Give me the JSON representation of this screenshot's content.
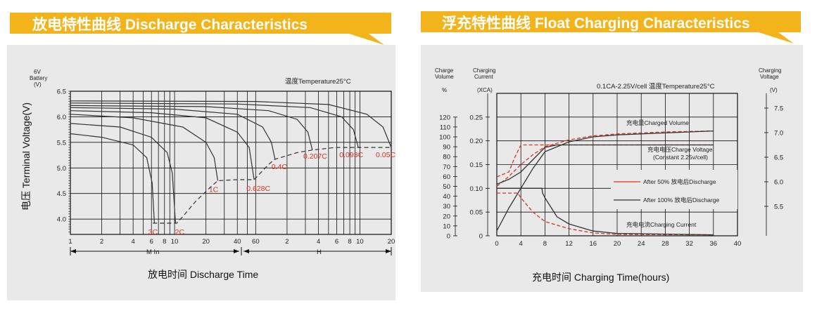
{
  "left": {
    "banner": "放电特性曲线 Discharge Characteristics",
    "y_unit": "6V\nBattery\n(V)",
    "temperature": "温度Temperature25°C",
    "y_title": "电压 Terminal Voltage(V)",
    "x_title": "放电时间 Discharge Time",
    "min_label": "M In",
    "h_label": "H"
  },
  "right": {
    "banner": "浮充特性曲线 Float Charging Characteristics",
    "left_axis_title": "Charge\nVolume\n%",
    "mid_axis_title": "Charging\nCurrent\n(XCA)",
    "right_axis_title": "Charging\nVoltage\n(V)",
    "condition": "0.1CA-2.25V/cell   温度Temperature25°C",
    "x_title": "充电时间 Charging Time(hours)"
  },
  "colors": {
    "banner": "#f2b41a",
    "grid": "#111111",
    "curve": "#333333",
    "red": "#e0321c",
    "panel_bg": "#e9e9e9"
  },
  "chart_data": [
    {
      "type": "line",
      "title": "放电特性曲线 Discharge Characteristics",
      "ylabel": "电压 Terminal Voltage(V)",
      "xlabel": "放电时间 Discharge Time",
      "x_scale": "log",
      "x_unit_note": "1-60 Min, then 1-20 H",
      "x_ticks_min": [
        "1",
        "2",
        "4",
        "6",
        "8",
        "10",
        "20",
        "40",
        "60"
      ],
      "x_ticks_h": [
        "2",
        "4",
        "6",
        "8",
        "10",
        "20"
      ],
      "y_ticks": [
        "6.5",
        "6.0",
        "5.5",
        "5.0",
        "4.5",
        "4.0"
      ],
      "ylim": [
        3.7,
        6.5
      ],
      "series": [
        {
          "name": "3C",
          "x_min": [
            1,
            2,
            4,
            5.4,
            6.1,
            6.4
          ],
          "y": [
            5.67,
            5.6,
            5.45,
            5.2,
            4.7,
            3.92
          ]
        },
        {
          "name": "2C",
          "x_min": [
            1,
            3,
            6,
            8.5,
            9.5,
            10.2
          ],
          "y": [
            5.87,
            5.8,
            5.6,
            5.3,
            4.9,
            3.92
          ]
        },
        {
          "name": "1C",
          "x_min": [
            1,
            4,
            12,
            20,
            24,
            26
          ],
          "y": [
            6.05,
            5.98,
            5.8,
            5.5,
            5.2,
            4.75
          ]
        },
        {
          "name": "0.628C",
          "x_min": [
            1,
            6,
            20,
            40,
            52,
            58
          ],
          "y": [
            6.12,
            6.08,
            5.98,
            5.7,
            5.4,
            4.77
          ]
        },
        {
          "name": "0.4C",
          "x_min": [
            1,
            10,
            40,
            70,
            85,
            92
          ],
          "y": [
            6.18,
            6.15,
            6.05,
            5.8,
            5.5,
            5.17
          ]
        },
        {
          "name": "0.207C",
          "x_min": [
            1,
            20,
            80,
            150,
            190,
            210
          ],
          "y": [
            6.22,
            6.2,
            6.12,
            5.95,
            5.7,
            5.35
          ]
        },
        {
          "name": "0.093C",
          "x_min": [
            1,
            40,
            200,
            400,
            520,
            580
          ],
          "y": [
            6.27,
            6.25,
            6.18,
            6.0,
            5.75,
            5.4
          ]
        },
        {
          "name": "0.05C",
          "x_min": [
            1,
            60,
            300,
            700,
            1000,
            1200
          ],
          "y": [
            6.31,
            6.3,
            6.24,
            6.05,
            5.8,
            5.4
          ]
        }
      ],
      "end_voltage_line": {
        "x_min": [
          6.2,
          10.5,
          12,
          16,
          22,
          26,
          40,
          58,
          80,
          92,
          150,
          210,
          350,
          580,
          1200
        ],
        "y": [
          3.92,
          3.92,
          4.05,
          4.35,
          4.62,
          4.75,
          4.77,
          4.77,
          5.07,
          5.17,
          5.3,
          5.35,
          5.4,
          5.4,
          5.4
        ]
      }
    },
    {
      "type": "line",
      "title": "浮充特性曲线 Float Charging Characteristics",
      "xlabel": "充电时间 Charging Time(hours)",
      "x_ticks": [
        "0",
        "4",
        "8",
        "12",
        "16",
        "20",
        "24",
        "28",
        "32",
        "36",
        "40"
      ],
      "xlim": [
        0,
        40
      ],
      "left_axis_ticks": [
        "120",
        "110",
        "100",
        "90",
        "80",
        "70",
        "60",
        "50",
        "40",
        "30",
        "20",
        "10",
        "0"
      ],
      "mid_axis_ticks": [
        "0.25",
        "0.20",
        "0.15",
        "0.10",
        "0.05",
        "0"
      ],
      "right_axis_ticks": [
        "7.5",
        "7.0",
        "6.5",
        "6.0",
        "5.5"
      ],
      "annotations": [
        "充电量Charged Volume",
        "充电电压Charge Voltage",
        "(Constant 2.25v/cell)",
        "充电电流Charging Current"
      ],
      "legend": [
        "After 50% 放电后Discharge",
        "After 100% 放电后Discharge"
      ],
      "series": [
        {
          "name": "After 50% 放电后Discharge",
          "quantity": "Charged Volume %",
          "x": [
            0,
            2,
            4,
            6,
            8,
            12,
            16,
            20,
            28,
            36
          ],
          "y": [
            50,
            60,
            72,
            82,
            90,
            97,
            101,
            103,
            105,
            106
          ]
        },
        {
          "name": "After 100% 放电后Discharge",
          "quantity": "Charged Volume %",
          "x": [
            0,
            2,
            4,
            6,
            8,
            12,
            16,
            20,
            28,
            36
          ],
          "y": [
            5,
            28,
            48,
            68,
            85,
            95,
            100,
            102,
            104,
            106
          ]
        },
        {
          "name": "After 50% 放电后Discharge",
          "quantity": "Charging Voltage V",
          "x": [
            0,
            2,
            3,
            4,
            8,
            36
          ],
          "y": [
            6.1,
            6.2,
            6.5,
            6.75,
            6.75,
            6.75
          ]
        },
        {
          "name": "After 100% 放电后Discharge",
          "quantity": "Charging Voltage V",
          "x": [
            0,
            2,
            4,
            6,
            8,
            10,
            14,
            20,
            36
          ],
          "y": [
            5.95,
            6.05,
            6.2,
            6.45,
            6.7,
            6.75,
            6.75,
            6.75,
            6.75
          ]
        },
        {
          "name": "After 50% 放电后Discharge",
          "quantity": "Charging Current CA",
          "x": [
            0,
            3.5,
            4,
            6,
            8,
            12,
            16,
            20,
            36
          ],
          "y": [
            0.09,
            0.09,
            0.08,
            0.05,
            0.03,
            0.015,
            0.006,
            0.003,
            0.002
          ]
        },
        {
          "name": "After 100% 放电后Discharge",
          "quantity": "Charging Current CA",
          "x": [
            0,
            7.5,
            7.6,
            8,
            10,
            12,
            16,
            20,
            36
          ],
          "y": [
            0.1,
            0.1,
            0.09,
            0.08,
            0.04,
            0.025,
            0.01,
            0.005,
            0.002
          ]
        }
      ]
    }
  ]
}
